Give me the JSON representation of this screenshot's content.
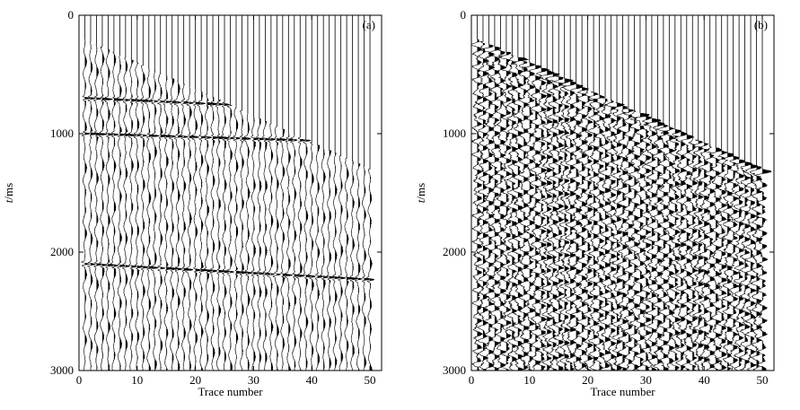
{
  "chart_data": [
    {
      "type": "wiggle",
      "panel_label": "(a)",
      "xlabel": "Trace number",
      "ylabel_italic": "t",
      "ylabel_unit": "/ms",
      "xlim": [
        0,
        52
      ],
      "ylim": [
        0,
        3000
      ],
      "y_inverted": true,
      "xticks": [
        0,
        10,
        20,
        30,
        40,
        50
      ],
      "yticks": [
        0,
        1000,
        2000,
        3000
      ],
      "trace_count": 50,
      "first_arrival_ms": {
        "trace_1": 200,
        "trace_50": 1300
      },
      "strong_events_ms": [
        700,
        1000,
        2100
      ],
      "event_dip_ms_per_trace": [
        1.5,
        1.0,
        1.8
      ]
    },
    {
      "type": "wiggle",
      "panel_label": "(b)",
      "xlabel": "Trace number",
      "ylabel_italic": "t",
      "ylabel_unit": "/ms",
      "xlim": [
        0,
        52
      ],
      "ylim": [
        0,
        3000
      ],
      "y_inverted": true,
      "xticks": [
        0,
        10,
        20,
        30,
        40,
        50
      ],
      "yticks": [
        0,
        1000,
        2000,
        3000
      ],
      "trace_count": 50,
      "first_arrival_ms": {
        "trace_1": 200,
        "trace_50": 1300
      },
      "strong_events_ms": []
    }
  ]
}
